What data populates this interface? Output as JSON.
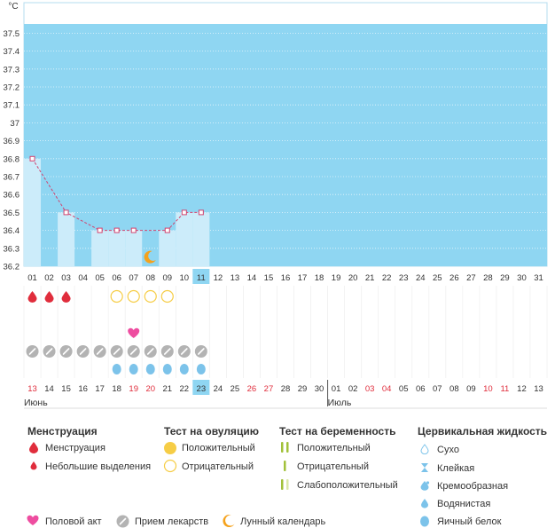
{
  "chart_data": {
    "type": "line",
    "ylabel": "°C",
    "ylim": [
      36.2,
      37.6
    ],
    "yticks": [
      "37.5",
      "37.4",
      "37.3",
      "37.2",
      "37.1",
      "37",
      "36.9",
      "36.8",
      "36.7",
      "36.6",
      "36.5",
      "36.4",
      "36.3",
      "36.2"
    ],
    "days": [
      "01",
      "02",
      "03",
      "04",
      "05",
      "06",
      "07",
      "08",
      "09",
      "10",
      "11",
      "12",
      "13",
      "14",
      "15",
      "16",
      "17",
      "18",
      "19",
      "20",
      "21",
      "22",
      "23",
      "24",
      "25",
      "26",
      "27",
      "28",
      "29",
      "30",
      "31"
    ],
    "current_day_index": 10,
    "temperature": [
      36.8,
      null,
      36.5,
      null,
      36.4,
      36.4,
      36.4,
      null,
      36.4,
      36.5,
      36.5,
      null,
      null,
      null,
      null,
      null,
      null,
      null,
      null,
      null,
      null,
      null,
      null,
      null,
      null,
      null,
      null,
      null,
      null,
      null,
      null
    ],
    "bars": [
      36.8,
      null,
      36.5,
      null,
      36.4,
      36.4,
      36.4,
      null,
      36.4,
      36.5,
      36.5
    ],
    "lunar_day_index": 7,
    "menstruation_days": [
      0,
      1,
      2
    ],
    "ovulation_negative_days": [
      5,
      6,
      7,
      8
    ],
    "intercourse_days": [
      6
    ],
    "medication_days": [
      0,
      1,
      2,
      3,
      4,
      5,
      6,
      7,
      8,
      9,
      10
    ],
    "cervical_egg_white_days": [
      5,
      6,
      7,
      8,
      9,
      10
    ],
    "calendar": [
      {
        "d": "13",
        "red": true
      },
      {
        "d": "14"
      },
      {
        "d": "15"
      },
      {
        "d": "16"
      },
      {
        "d": "17"
      },
      {
        "d": "18"
      },
      {
        "d": "19",
        "red": true
      },
      {
        "d": "20",
        "red": true
      },
      {
        "d": "21"
      },
      {
        "d": "22"
      },
      {
        "d": "23",
        "today": true
      },
      {
        "d": "24"
      },
      {
        "d": "25"
      },
      {
        "d": "26",
        "red": true
      },
      {
        "d": "27",
        "red": true
      },
      {
        "d": "28"
      },
      {
        "d": "29"
      },
      {
        "d": "30"
      },
      {
        "d": "01",
        "monthStart": true
      },
      {
        "d": "02"
      },
      {
        "d": "03",
        "red": true
      },
      {
        "d": "04",
        "red": true
      },
      {
        "d": "05"
      },
      {
        "d": "06"
      },
      {
        "d": "07"
      },
      {
        "d": "08"
      },
      {
        "d": "09"
      },
      {
        "d": "10",
        "red": true
      },
      {
        "d": "11",
        "red": true
      },
      {
        "d": "12"
      },
      {
        "d": "13"
      }
    ],
    "month_labels": [
      {
        "label": "Июнь",
        "index": 0
      },
      {
        "label": "Июль",
        "index": 18
      }
    ]
  },
  "legend": {
    "menstruation": {
      "title": "Менструация",
      "items": [
        "Менструация",
        "Небольшие выделения"
      ]
    },
    "ovulation": {
      "title": "Тест на овуляцию",
      "items": [
        "Положительный",
        "Отрицательный"
      ]
    },
    "pregnancy": {
      "title": "Тест на беременность",
      "items": [
        "Положительный",
        "Отрицательный",
        "Слабоположительный"
      ]
    },
    "cervical": {
      "title": "Цервикальная жидкость",
      "items": [
        "Сухо",
        "Клейкая",
        "Кремообразная",
        "Водянистая",
        "Яичный белок"
      ]
    },
    "bottom": [
      "Половой акт",
      "Прием лекарств",
      "Лунный календарь"
    ]
  },
  "colors": {
    "plot_bg": "#8fd6f2",
    "bar": "#ccecfa",
    "line": "#d1436f",
    "red": "#e02d3c",
    "yellow": "#f6cd46",
    "pink": "#ee4da0",
    "gray": "#b3b3b3",
    "blue": "#7cc3ea",
    "today": "#8fd6f2",
    "green": "#a2c13a",
    "orange": "#f5a21c"
  }
}
